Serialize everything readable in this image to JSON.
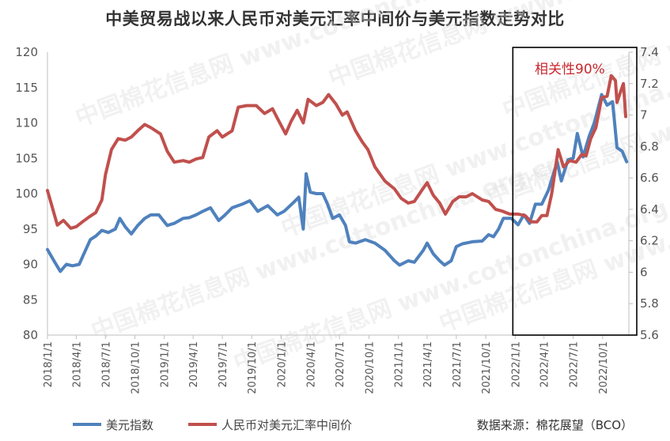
{
  "chart_data": {
    "type": "line",
    "title": "中美贸易战以来人民币对美元汇率中间价与美元指数走势对比",
    "x_ticks": [
      "2018/1/1",
      "2018/4/1",
      "2018/7/1",
      "2018/10/1",
      "2019/1/1",
      "2019/4/1",
      "2019/7/1",
      "2019/10/1",
      "2020/1/1",
      "2020/4/1",
      "2020/7/1",
      "2020/10/1",
      "2021/1/1",
      "2021/4/1",
      "2021/7/1",
      "2021/10/1",
      "2022/1/1",
      "2022/4/1",
      "2022/7/1",
      "2022/10/1"
    ],
    "y_left": {
      "min": 80,
      "max": 120,
      "ticks": [
        "80",
        "85",
        "90",
        "95",
        "100",
        "105",
        "110",
        "115",
        "120"
      ]
    },
    "y_right": {
      "min": 5.6,
      "max": 7.4,
      "ticks": [
        "5.6",
        "5.8",
        "6",
        "6.2",
        "6.4",
        "6.6",
        "6.8",
        "7",
        "7.2",
        "7.4"
      ]
    },
    "grid": false,
    "legend_position": "bottom-left",
    "colors": {
      "usd_index": "#4f81bd",
      "rmb_rate": "#c0504d",
      "box": "#000000",
      "annotation": "#c8282e"
    },
    "series": [
      {
        "name": "美元指数",
        "axis": "left",
        "points": [
          [
            "2018/1/1",
            92.1
          ],
          [
            "2018/1/20",
            90.6
          ],
          [
            "2018/2/10",
            89.0
          ],
          [
            "2018/3/1",
            90.0
          ],
          [
            "2018/3/20",
            89.8
          ],
          [
            "2018/4/10",
            90.0
          ],
          [
            "2018/4/25",
            91.5
          ],
          [
            "2018/5/15",
            93.5
          ],
          [
            "2018/6/1",
            94.0
          ],
          [
            "2018/6/20",
            94.8
          ],
          [
            "2018/7/10",
            94.5
          ],
          [
            "2018/8/1",
            95.0
          ],
          [
            "2018/8/15",
            96.5
          ],
          [
            "2018/9/1",
            95.3
          ],
          [
            "2018/9/20",
            94.3
          ],
          [
            "2018/10/10",
            95.5
          ],
          [
            "2018/11/1",
            96.5
          ],
          [
            "2018/11/20",
            97.0
          ],
          [
            "2018/12/15",
            97.0
          ],
          [
            "2019/1/10",
            95.5
          ],
          [
            "2019/2/1",
            95.8
          ],
          [
            "2019/3/1",
            96.5
          ],
          [
            "2019/3/20",
            96.6
          ],
          [
            "2019/4/10",
            97.0
          ],
          [
            "2019/5/1",
            97.5
          ],
          [
            "2019/5/25",
            98.0
          ],
          [
            "2019/6/20",
            96.2
          ],
          [
            "2019/7/10",
            97.0
          ],
          [
            "2019/8/1",
            98.0
          ],
          [
            "2019/9/1",
            98.5
          ],
          [
            "2019/9/25",
            99.0
          ],
          [
            "2019/10/20",
            97.5
          ],
          [
            "2019/11/20",
            98.3
          ],
          [
            "2019/12/20",
            97.0
          ],
          [
            "2020/1/10",
            97.5
          ],
          [
            "2020/2/10",
            98.8
          ],
          [
            "2020/2/25",
            99.5
          ],
          [
            "2020/3/10",
            95.0
          ],
          [
            "2020/3/19",
            102.8
          ],
          [
            "2020/4/1",
            100.2
          ],
          [
            "2020/4/20",
            100.0
          ],
          [
            "2020/5/10",
            100.0
          ],
          [
            "2020/5/25",
            98.5
          ],
          [
            "2020/6/10",
            96.5
          ],
          [
            "2020/7/1",
            97.0
          ],
          [
            "2020/7/20",
            95.5
          ],
          [
            "2020/8/1",
            93.2
          ],
          [
            "2020/8/20",
            93.0
          ],
          [
            "2020/9/20",
            93.5
          ],
          [
            "2020/10/20",
            93.0
          ],
          [
            "2020/11/20",
            92.0
          ],
          [
            "2020/12/20",
            90.5
          ],
          [
            "2021/1/5",
            89.9
          ],
          [
            "2021/2/1",
            90.5
          ],
          [
            "2021/2/20",
            90.3
          ],
          [
            "2021/3/20",
            92.0
          ],
          [
            "2021/4/1",
            93.0
          ],
          [
            "2021/4/20",
            91.5
          ],
          [
            "2021/5/10",
            90.5
          ],
          [
            "2021/5/25",
            89.9
          ],
          [
            "2021/6/15",
            90.5
          ],
          [
            "2021/7/1",
            92.5
          ],
          [
            "2021/7/20",
            92.9
          ],
          [
            "2021/8/20",
            93.2
          ],
          [
            "2021/9/20",
            93.3
          ],
          [
            "2021/10/10",
            94.2
          ],
          [
            "2021/10/25",
            93.9
          ],
          [
            "2021/11/10",
            95.0
          ],
          [
            "2021/11/25",
            96.5
          ],
          [
            "2021/12/20",
            96.5
          ],
          [
            "2022/1/10",
            95.6
          ],
          [
            "2022/1/28",
            97.0
          ],
          [
            "2022/2/15",
            95.8
          ],
          [
            "2022/3/5",
            98.5
          ],
          [
            "2022/3/25",
            98.5
          ],
          [
            "2022/4/15",
            100.5
          ],
          [
            "2022/5/12",
            104.5
          ],
          [
            "2022/5/25",
            101.8
          ],
          [
            "2022/6/15",
            104.8
          ],
          [
            "2022/7/1",
            105.0
          ],
          [
            "2022/7/14",
            108.5
          ],
          [
            "2022/8/1",
            105.2
          ],
          [
            "2022/8/20",
            108.1
          ],
          [
            "2022/9/5",
            110.0
          ],
          [
            "2022/9/28",
            114.0
          ],
          [
            "2022/10/15",
            112.5
          ],
          [
            "2022/11/1",
            113.0
          ],
          [
            "2022/11/15",
            106.5
          ],
          [
            "2022/12/1",
            106.0
          ],
          [
            "2022/12/15",
            104.5
          ]
        ]
      },
      {
        "name": "人民币对美元汇率中间价",
        "axis": "right",
        "points": [
          [
            "2018/1/1",
            6.52
          ],
          [
            "2018/1/15",
            6.42
          ],
          [
            "2018/2/1",
            6.3
          ],
          [
            "2018/2/20",
            6.33
          ],
          [
            "2018/3/15",
            6.28
          ],
          [
            "2018/4/1",
            6.29
          ],
          [
            "2018/4/20",
            6.32
          ],
          [
            "2018/5/10",
            6.35
          ],
          [
            "2018/6/1",
            6.38
          ],
          [
            "2018/6/20",
            6.46
          ],
          [
            "2018/7/1",
            6.62
          ],
          [
            "2018/7/20",
            6.78
          ],
          [
            "2018/8/10",
            6.85
          ],
          [
            "2018/9/1",
            6.84
          ],
          [
            "2018/9/20",
            6.86
          ],
          [
            "2018/10/10",
            6.9
          ],
          [
            "2018/11/1",
            6.94
          ],
          [
            "2018/11/20",
            6.92
          ],
          [
            "2018/12/20",
            6.88
          ],
          [
            "2019/1/10",
            6.77
          ],
          [
            "2019/2/1",
            6.7
          ],
          [
            "2019/3/1",
            6.71
          ],
          [
            "2019/3/20",
            6.7
          ],
          [
            "2019/4/10",
            6.72
          ],
          [
            "2019/5/1",
            6.73
          ],
          [
            "2019/5/20",
            6.86
          ],
          [
            "2019/6/15",
            6.9
          ],
          [
            "2019/7/1",
            6.86
          ],
          [
            "2019/8/1",
            6.9
          ],
          [
            "2019/8/20",
            7.05
          ],
          [
            "2019/9/15",
            7.06
          ],
          [
            "2019/10/15",
            7.06
          ],
          [
            "2019/11/10",
            7.01
          ],
          [
            "2019/12/5",
            7.04
          ],
          [
            "2019/12/20",
            6.98
          ],
          [
            "2020/1/15",
            6.88
          ],
          [
            "2020/2/1",
            6.96
          ],
          [
            "2020/2/20",
            7.03
          ],
          [
            "2020/3/10",
            6.95
          ],
          [
            "2020/3/25",
            7.1
          ],
          [
            "2020/4/20",
            7.06
          ],
          [
            "2020/5/10",
            7.08
          ],
          [
            "2020/5/28",
            7.13
          ],
          [
            "2020/6/20",
            7.07
          ],
          [
            "2020/7/10",
            7.0
          ],
          [
            "2020/7/25",
            7.02
          ],
          [
            "2020/8/20",
            6.9
          ],
          [
            "2020/9/10",
            6.83
          ],
          [
            "2020/9/28",
            6.78
          ],
          [
            "2020/10/20",
            6.67
          ],
          [
            "2020/11/20",
            6.58
          ],
          [
            "2020/12/20",
            6.53
          ],
          [
            "2021/1/10",
            6.47
          ],
          [
            "2021/2/1",
            6.44
          ],
          [
            "2021/2/20",
            6.45
          ],
          [
            "2021/3/15",
            6.52
          ],
          [
            "2021/4/1",
            6.57
          ],
          [
            "2021/4/20",
            6.49
          ],
          [
            "2021/5/10",
            6.44
          ],
          [
            "2021/5/28",
            6.37
          ],
          [
            "2021/6/20",
            6.45
          ],
          [
            "2021/7/10",
            6.48
          ],
          [
            "2021/8/1",
            6.48
          ],
          [
            "2021/8/20",
            6.5
          ],
          [
            "2021/9/20",
            6.46
          ],
          [
            "2021/10/10",
            6.45
          ],
          [
            "2021/11/1",
            6.4
          ],
          [
            "2021/11/20",
            6.39
          ],
          [
            "2021/12/15",
            6.37
          ],
          [
            "2022/1/10",
            6.37
          ],
          [
            "2022/2/1",
            6.36
          ],
          [
            "2022/2/20",
            6.32
          ],
          [
            "2022/3/10",
            6.32
          ],
          [
            "2022/3/25",
            6.36
          ],
          [
            "2022/4/10",
            6.36
          ],
          [
            "2022/4/25",
            6.5
          ],
          [
            "2022/5/15",
            6.78
          ],
          [
            "2022/6/1",
            6.67
          ],
          [
            "2022/6/20",
            6.71
          ],
          [
            "2022/7/10",
            6.7
          ],
          [
            "2022/7/28",
            6.75
          ],
          [
            "2022/8/10",
            6.74
          ],
          [
            "2022/8/25",
            6.85
          ],
          [
            "2022/9/10",
            6.92
          ],
          [
            "2022/9/28",
            7.11
          ],
          [
            "2022/10/15",
            7.12
          ],
          [
            "2022/10/28",
            7.25
          ],
          [
            "2022/11/10",
            7.22
          ],
          [
            "2022/11/15",
            7.08
          ],
          [
            "2022/11/28",
            7.16
          ],
          [
            "2022/12/5",
            7.2
          ],
          [
            "2022/12/12",
            6.99
          ]
        ]
      }
    ],
    "annotation": "相关性90%"
  },
  "legend": {
    "item1": "美元指数",
    "item2": "人民币对美元汇率中间价"
  },
  "source": "数据来源：棉花展望（BCO）",
  "watermark": "中国棉花信息网 www.cottonchina.org.cn"
}
